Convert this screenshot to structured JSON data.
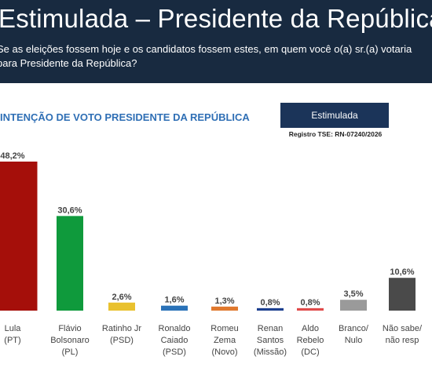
{
  "header": {
    "title": "Estimulada – Presidente da República",
    "question_line1": "Se as eleições fossem hoje e os candidatos fossem estes, em quem você o(a) sr.(a) votaria",
    "question_line2": "para Presidente da República?"
  },
  "badge": {
    "label": "Estimulada"
  },
  "registro": "Registro TSE: RN-07240/2026",
  "chart_data": {
    "type": "bar",
    "title": "INTENÇÃO DE VOTO PRESIDENTE DA REPÚBLICA",
    "categories": [
      [
        "Lula",
        "(PT)"
      ],
      [
        "Flávio",
        "Bolsonaro",
        "(PL)"
      ],
      [
        "Ratinho Jr",
        "(PSD)"
      ],
      [
        "Ronaldo",
        "Caiado",
        "(PSD)"
      ],
      [
        "Romeu",
        "Zema",
        "(Novo)"
      ],
      [
        "Renan",
        "Santos",
        "(Missão)"
      ],
      [
        "Aldo",
        "Rebelo",
        "(DC)"
      ],
      [
        "Branco/",
        "Nulo"
      ],
      [
        "Não sabe/",
        "não resp"
      ]
    ],
    "values": [
      48.2,
      30.6,
      2.6,
      1.6,
      1.3,
      0.8,
      0.8,
      3.5,
      10.6
    ],
    "value_labels": [
      "48,2%",
      "30,6%",
      "2,6%",
      "1,6%",
      "1,3%",
      "0,8%",
      "0,8%",
      "3,5%",
      "10,6%"
    ],
    "colors": [
      "#a50f0a",
      "#0f9a3c",
      "#e9c12e",
      "#2a72b8",
      "#e0792e",
      "#1c3f8f",
      "#e04a4a",
      "#9a9a9a",
      "#4a4a4a"
    ],
    "ylim": [
      0,
      48.2
    ]
  }
}
